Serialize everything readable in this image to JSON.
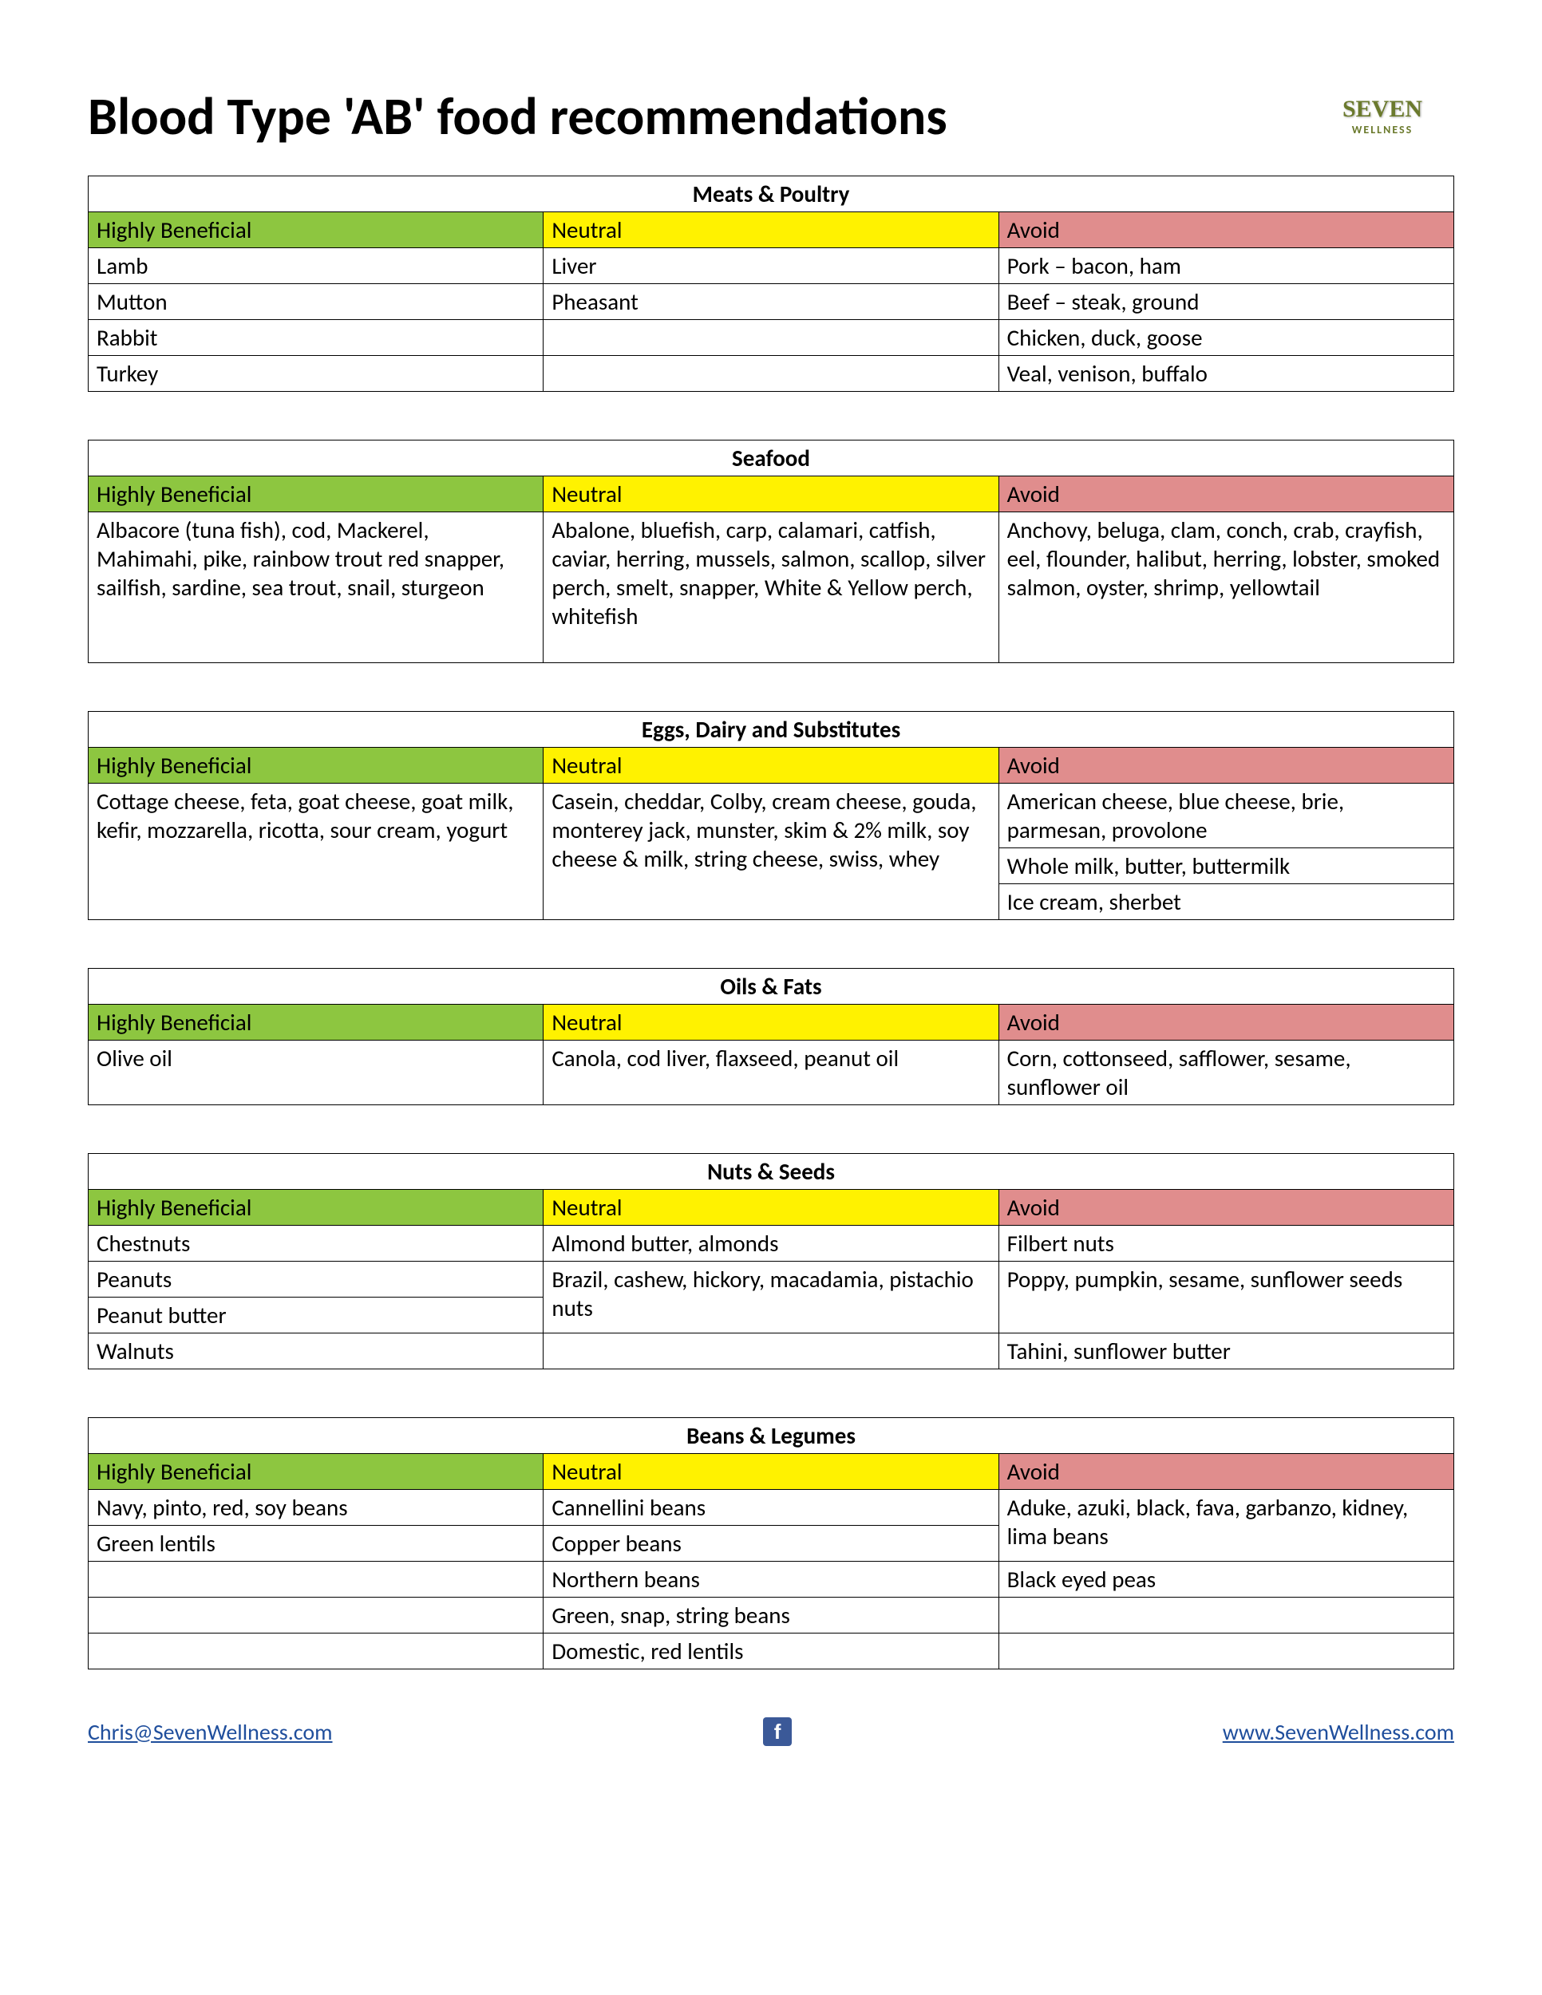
{
  "title": "Blood Type 'AB' food recommendations",
  "logo": {
    "main": "SEVEN",
    "sub": "WELLNESS"
  },
  "colors": {
    "beneficial": "#8dc640",
    "neutral": "#fff200",
    "avoid": "#e08d8d",
    "border": "#000000",
    "link": "#1f4e9c"
  },
  "headers": {
    "beneficial": "Highly Beneficial",
    "neutral": "Neutral",
    "avoid": "Avoid"
  },
  "categories": [
    {
      "name": "Meats & Poultry",
      "rows": [
        [
          "Lamb",
          "Liver",
          "Pork – bacon, ham"
        ],
        [
          "Mutton",
          "Pheasant",
          "Beef – steak, ground"
        ],
        [
          "Rabbit",
          "",
          "Chicken, duck, goose"
        ],
        [
          "Turkey",
          "",
          "Veal, venison, buffalo"
        ]
      ]
    },
    {
      "name": "Seafood",
      "rows": [
        [
          "Albacore (tuna fish), cod, Mackerel, Mahimahi, pike, rainbow trout red snapper, sailfish, sardine, sea trout, snail, sturgeon",
          "Abalone, bluefish, carp, calamari, catfish, caviar, herring, mussels, salmon, scallop, silver perch, smelt, snapper, White & Yellow perch, whitefish",
          "Anchovy, beluga, clam, conch, crab, crayfish, eel, flounder, halibut, herring, lobster, smoked salmon, oyster, shrimp, yellowtail"
        ]
      ],
      "tall": true
    },
    {
      "name": "Eggs, Dairy and Substitutes",
      "rows": [
        {
          "cells": [
            {
              "text": "Cottage cheese, feta, goat cheese, goat milk, kefir, mozzarella, ricotta, sour cream, yogurt",
              "rowspan": 3
            },
            {
              "text": "Casein, cheddar, Colby, cream cheese, gouda, monterey jack, munster, skim & 2% milk, soy cheese & milk, string cheese, swiss, whey",
              "rowspan": 3
            },
            {
              "text": "American cheese, blue cheese, brie, parmesan, provolone"
            }
          ]
        },
        {
          "cells": [
            {
              "text": "Whole milk, butter, buttermilk"
            }
          ]
        },
        {
          "cells": [
            {
              "text": "Ice cream, sherbet"
            }
          ]
        }
      ],
      "complex": true
    },
    {
      "name": "Oils & Fats",
      "rows": [
        [
          "Olive oil",
          "Canola, cod liver, flaxseed, peanut oil",
          "Corn, cottonseed, safflower, sesame, sunflower oil"
        ]
      ]
    },
    {
      "name": "Nuts & Seeds",
      "rows": [
        {
          "cells": [
            {
              "text": "Chestnuts"
            },
            {
              "text": "Almond butter, almonds"
            },
            {
              "text": "Filbert nuts"
            }
          ]
        },
        {
          "cells": [
            {
              "text": "Peanuts"
            },
            {
              "text": "Brazil, cashew, hickory, macadamia, pistachio nuts",
              "rowspan": 2
            },
            {
              "text": "Poppy, pumpkin, sesame, sunflower seeds",
              "rowspan": 2
            }
          ]
        },
        {
          "cells": [
            {
              "text": "Peanut butter"
            }
          ]
        },
        {
          "cells": [
            {
              "text": "Walnuts"
            },
            {
              "text": ""
            },
            {
              "text": "Tahini, sunflower butter"
            }
          ]
        }
      ],
      "complex": true
    },
    {
      "name": "Beans & Legumes",
      "rows": [
        {
          "cells": [
            {
              "text": "Navy, pinto, red, soy beans"
            },
            {
              "text": "Cannellini beans"
            },
            {
              "text": "Aduke, azuki, black, fava, garbanzo, kidney, lima beans",
              "rowspan": 2
            }
          ]
        },
        {
          "cells": [
            {
              "text": "Green lentils"
            },
            {
              "text": "Copper beans"
            }
          ]
        },
        {
          "cells": [
            {
              "text": ""
            },
            {
              "text": "Northern beans"
            },
            {
              "text": "Black eyed peas"
            }
          ]
        },
        {
          "cells": [
            {
              "text": ""
            },
            {
              "text": "Green, snap, string  beans"
            },
            {
              "text": ""
            }
          ]
        },
        {
          "cells": [
            {
              "text": ""
            },
            {
              "text": "Domestic, red lentils"
            },
            {
              "text": ""
            }
          ]
        }
      ],
      "complex": true
    }
  ],
  "footer": {
    "email": "Chris@SevenWellness.com",
    "website": "www.SevenWellness.com",
    "fb": "f"
  }
}
